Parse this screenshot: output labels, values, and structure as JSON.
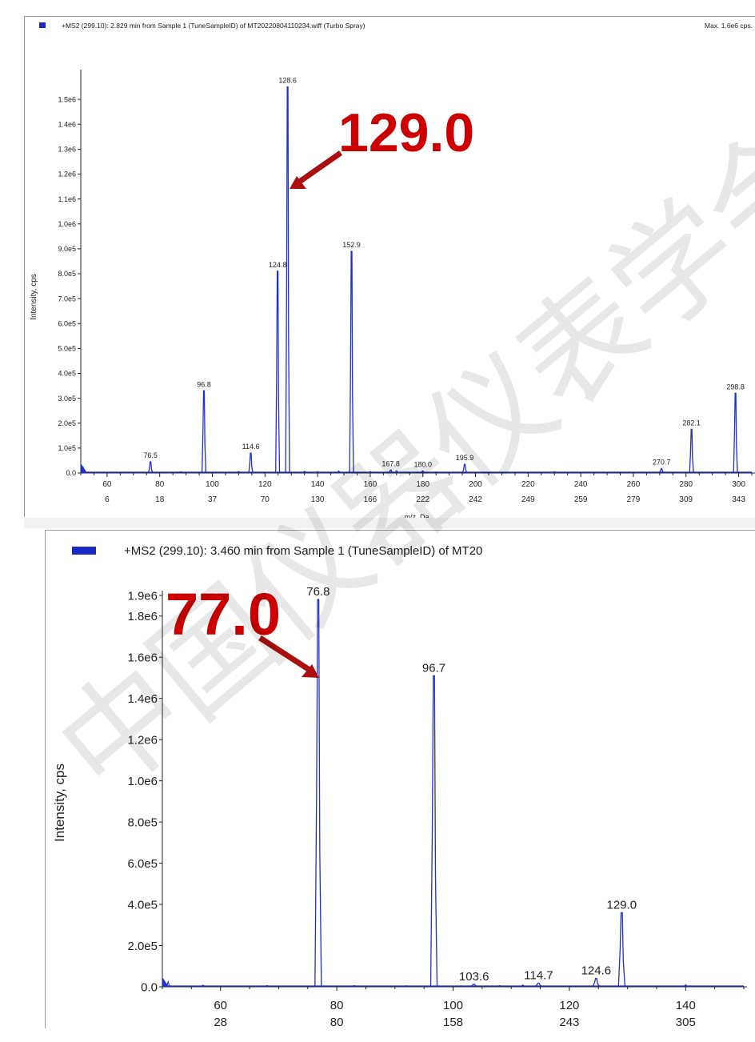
{
  "watermark": "中国仪器仪表学会",
  "colors": {
    "trace": "#1f2fd6",
    "annotation": "#cc0000",
    "legend": "#1a2bc4"
  },
  "chart_data": [
    {
      "type": "line",
      "title": "+MS2 (299.10): 2.829 min from Sample 1 (TuneSampleID) of MT20220804110234.wiff (Turbo Spray)",
      "max_label": "Max. 1.6e6 cps.",
      "ylabel": "Intensity, cps",
      "xlabel": "m/z, Da",
      "xlim": [
        50,
        305
      ],
      "ylim": [
        0,
        1600000
      ],
      "y_ticks": [
        "0.0",
        "1.0e5",
        "2.0e5",
        "3.0e5",
        "4.0e5",
        "5.0e5",
        "6.0e5",
        "7.0e5",
        "8.0e5",
        "9.0e5",
        "1.0e6",
        "1.1e6",
        "1.2e6",
        "1.3e6",
        "1.4e6",
        "1.5e6"
      ],
      "x_ticks": [
        {
          "mz": 60,
          "label": "60",
          "sub": "6"
        },
        {
          "mz": 80,
          "label": "80",
          "sub": "18"
        },
        {
          "mz": 100,
          "label": "100",
          "sub": "37"
        },
        {
          "mz": 120,
          "label": "120",
          "sub": "70"
        },
        {
          "mz": 140,
          "label": "140",
          "sub": "130"
        },
        {
          "mz": 160,
          "label": "160",
          "sub": "166"
        },
        {
          "mz": 180,
          "label": "180",
          "sub": "222"
        },
        {
          "mz": 200,
          "label": "200",
          "sub": "242"
        },
        {
          "mz": 220,
          "label": "220",
          "sub": "249"
        },
        {
          "mz": 240,
          "label": "240",
          "sub": "259"
        },
        {
          "mz": 260,
          "label": "260",
          "sub": "279"
        },
        {
          "mz": 280,
          "label": "280",
          "sub": "309"
        },
        {
          "mz": 300,
          "label": "300",
          "sub": "343"
        }
      ],
      "peaks": [
        {
          "mz": 76.5,
          "y": 45000,
          "label": "76.5"
        },
        {
          "mz": 96.8,
          "y": 330000,
          "label": "96.8"
        },
        {
          "mz": 114.6,
          "y": 80000,
          "label": "114.6"
        },
        {
          "mz": 124.8,
          "y": 810000,
          "label": "124.8"
        },
        {
          "mz": 128.6,
          "y": 1550000,
          "label": "128.6"
        },
        {
          "mz": 152.9,
          "y": 890000,
          "label": "152.9"
        },
        {
          "mz": 167.8,
          "y": 12000,
          "label": "167.8"
        },
        {
          "mz": 180.0,
          "y": 8000,
          "label": "180.0"
        },
        {
          "mz": 195.9,
          "y": 35000,
          "label": "195.9"
        },
        {
          "mz": 270.7,
          "y": 18000,
          "label": "270.7"
        },
        {
          "mz": 282.1,
          "y": 175000,
          "label": "282.1"
        },
        {
          "mz": 298.8,
          "y": 320000,
          "label": "298.8"
        }
      ],
      "noise": [
        [
          51,
          20000
        ],
        [
          88,
          5000
        ],
        [
          110,
          6000
        ],
        [
          135,
          7000
        ],
        [
          140,
          5000
        ],
        [
          148,
          8000
        ],
        [
          160,
          6000
        ],
        [
          170,
          9000
        ],
        [
          185,
          4000
        ],
        [
          230,
          5000
        ],
        [
          255,
          4000
        ]
      ],
      "annotation": "129.0"
    },
    {
      "type": "line",
      "title": "+MS2 (299.10): 3.460 min from Sample 1 (TuneSampleID) of MT20",
      "ylabel": "Intensity, cps",
      "xlim": [
        50,
        150
      ],
      "ylim": [
        0,
        1900000
      ],
      "y_ticks": [
        "0.0",
        "2.0e5",
        "4.0e5",
        "6.0e5",
        "8.0e5",
        "1.0e6",
        "1.2e6",
        "1.4e6",
        "1.6e6",
        "1.8e6",
        "1.9e6"
      ],
      "x_ticks": [
        {
          "mz": 60,
          "label": "60",
          "sub": "28"
        },
        {
          "mz": 80,
          "label": "80",
          "sub": "80"
        },
        {
          "mz": 100,
          "label": "100",
          "sub": "158"
        },
        {
          "mz": 120,
          "label": "120",
          "sub": "243"
        },
        {
          "mz": 140,
          "label": "140",
          "sub": "305"
        }
      ],
      "peaks": [
        {
          "mz": 76.8,
          "y": 1880000,
          "label": "76.8"
        },
        {
          "mz": 96.7,
          "y": 1510000,
          "label": "96.7"
        },
        {
          "mz": 103.6,
          "y": 12000,
          "label": "103.6"
        },
        {
          "mz": 114.7,
          "y": 18000,
          "label": "114.7"
        },
        {
          "mz": 124.6,
          "y": 40000,
          "label": "124.6"
        },
        {
          "mz": 129.0,
          "y": 360000,
          "label": "129.0"
        }
      ],
      "noise": [
        [
          51,
          25000
        ],
        [
          57,
          8000
        ],
        [
          68,
          6000
        ],
        [
          83,
          6000
        ],
        [
          92,
          5000
        ],
        [
          108,
          6000
        ],
        [
          112,
          9000
        ],
        [
          140,
          10000
        ]
      ],
      "annotation": "77.0"
    }
  ]
}
